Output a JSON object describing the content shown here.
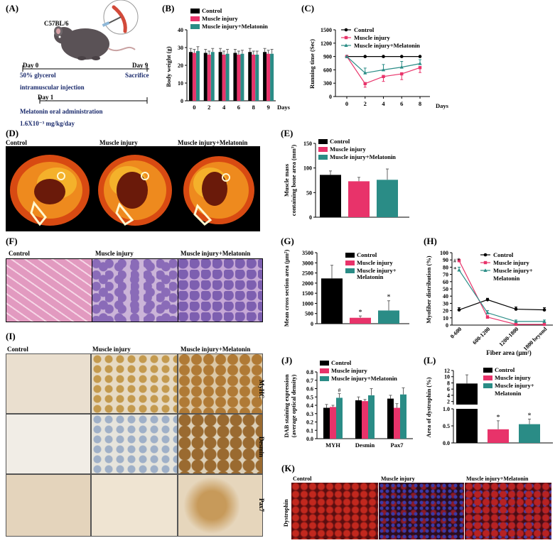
{
  "colors": {
    "control": "#000000",
    "injury": "#e8336a",
    "melatonin": "#2a8c86"
  },
  "panelA": {
    "label": "(A)",
    "mouse": "C57BL/6",
    "day0": "Day 0",
    "day9": "Day 9",
    "day1": "Day 1",
    "glycerol1": "50% glycerol",
    "glycerol2": "intramuscular injection",
    "sacrifice": "Sacrifice",
    "melatonin": "Melatonin oral administration",
    "dose": "1.6X10⁻³ mg/kg/day"
  },
  "legend": {
    "control": "Control",
    "injury": "Muscle injury",
    "melatonin": "Muscle injury+Melatonin",
    "melatonin_wrap1": "Muscle injury+",
    "melatonin_wrap2": "Melatonin"
  },
  "panelB": {
    "label": "(B)"
  },
  "panelC": {
    "label": "(C)"
  },
  "panelD": {
    "label": "(D)",
    "c1": "Control",
    "c2": "Muscle injury",
    "c3": "Muscle injury+Melatonin"
  },
  "panelE": {
    "label": "(E)"
  },
  "panelF": {
    "label": "(F)",
    "c1": "Control",
    "c2": "Muscle injury",
    "c3": "Muscle injury+Melatonin"
  },
  "panelG": {
    "label": "(G)"
  },
  "panelH": {
    "label": "(H)"
  },
  "panelI": {
    "label": "(I)",
    "c1": "Control",
    "c2": "Muscle injury",
    "c3": "Muscle injury+Melatonin",
    "r1": "MyHC",
    "r2": "Desmin",
    "r3": "Pax7"
  },
  "panelJ": {
    "label": "(J)"
  },
  "panelK": {
    "label": "(K)",
    "c1": "Control",
    "c2": "Muscle injury",
    "c3": "Muscle injury+Melatonin",
    "row": "Dystrophin"
  },
  "panelL": {
    "label": "(L)"
  },
  "chart_data": [
    {
      "panel": "B",
      "type": "bar",
      "categories": [
        "0",
        "2",
        "4",
        "6",
        "8",
        "9"
      ],
      "xlabel": "Days",
      "ylabel": "Body weight (g)",
      "ylim": [
        0,
        40
      ],
      "yticks": [
        0,
        10,
        20,
        30,
        40
      ],
      "series": [
        {
          "name": "Control",
          "values": [
            27.5,
            27,
            27.5,
            27,
            27.5,
            27.5
          ],
          "err": [
            2,
            2,
            2,
            2,
            2,
            2
          ]
        },
        {
          "name": "Muscle injury",
          "values": [
            27,
            26,
            26,
            26,
            26,
            26.5
          ],
          "err": [
            2,
            2,
            2,
            2,
            2,
            2
          ]
        },
        {
          "name": "Muscle injury+Melatonin",
          "values": [
            28,
            27.5,
            26.5,
            26.5,
            26,
            26.5
          ],
          "err": [
            2.5,
            2,
            2.5,
            2,
            2,
            2.5
          ]
        }
      ]
    },
    {
      "panel": "C",
      "type": "line",
      "x": [
        0,
        2,
        4,
        6,
        8
      ],
      "xlabel": "Days",
      "ylabel": "Running time (Sec)",
      "ylim": [
        0,
        1500
      ],
      "yticks": [
        0,
        300,
        600,
        900,
        1200,
        1500
      ],
      "series": [
        {
          "name": "Control",
          "values": [
            900,
            900,
            900,
            900,
            900
          ],
          "err": [
            0,
            0,
            0,
            0,
            0
          ]
        },
        {
          "name": "Muscle injury",
          "values": [
            900,
            290,
            450,
            510,
            650
          ],
          "err": [
            0,
            80,
            110,
            130,
            110
          ]
        },
        {
          "name": "Muscle injury+Melatonin",
          "values": [
            900,
            530,
            600,
            660,
            740
          ],
          "err": [
            0,
            110,
            120,
            130,
            90
          ]
        }
      ]
    },
    {
      "panel": "E",
      "type": "bar",
      "categories": [
        ""
      ],
      "ylabel": "Muscle mass containing bone area (mm³)",
      "ylim": [
        0,
        150
      ],
      "yticks": [
        0,
        50,
        100,
        150
      ],
      "series": [
        {
          "name": "Control",
          "values": [
            86
          ],
          "err": [
            8
          ]
        },
        {
          "name": "Muscle injury",
          "values": [
            73
          ],
          "err": [
            8
          ]
        },
        {
          "name": "Muscle injury+Melatonin",
          "values": [
            76
          ],
          "err": [
            22
          ]
        }
      ]
    },
    {
      "panel": "G",
      "type": "bar",
      "categories": [
        ""
      ],
      "ylabel": "Mean cross section area (μm²)",
      "ylim": [
        0,
        3500
      ],
      "yticks": [
        0,
        500,
        1000,
        1500,
        2000,
        2500,
        3000,
        3500
      ],
      "series": [
        {
          "name": "Control",
          "values": [
            2230
          ],
          "err": [
            650
          ]
        },
        {
          "name": "Muscle injury",
          "values": [
            290
          ],
          "err": [
            90
          ],
          "sig": "*"
        },
        {
          "name": "Muscle injury+Melatonin",
          "values": [
            650
          ],
          "err": [
            480
          ],
          "sig": "*"
        }
      ]
    },
    {
      "panel": "H",
      "type": "line",
      "categories": [
        "0-600",
        "600-1200",
        "1200-1800",
        "1800 beyond"
      ],
      "xlabel": "Fiber area (μm²)",
      "ylabel": "Myofiber distribution (%)",
      "ylim": [
        0,
        100
      ],
      "yticks": [
        0,
        10,
        20,
        30,
        40,
        50,
        60,
        70,
        80,
        90,
        100
      ],
      "series": [
        {
          "name": "Control",
          "values": [
            21,
            35,
            22,
            21
          ],
          "err": [
            3,
            2,
            3,
            3
          ]
        },
        {
          "name": "Muscle injury",
          "values": [
            89,
            11,
            1,
            1
          ],
          "err": [
            2,
            2,
            1,
            1
          ],
          "sig": [
            "#"
          ]
        },
        {
          "name": "Muscle injury+Melatonin",
          "values": [
            76,
            17,
            5,
            5
          ],
          "err": [
            4,
            3,
            2,
            2
          ],
          "sig": [
            "*"
          ]
        }
      ]
    },
    {
      "panel": "J",
      "type": "bar",
      "categories": [
        "MYH",
        "Desmin",
        "Pax7"
      ],
      "ylabel": "DAB staining expression (average optical density)",
      "ylim": [
        0,
        0.8
      ],
      "yticks": [
        0,
        0.1,
        0.2,
        0.3,
        0.4,
        0.5,
        0.6,
        0.7,
        0.8
      ],
      "series": [
        {
          "name": "Control",
          "values": [
            0.37,
            0.46,
            0.48
          ],
          "err": [
            0.04,
            0.04,
            0.04
          ]
        },
        {
          "name": "Muscle injury",
          "values": [
            0.38,
            0.45,
            0.37
          ],
          "err": [
            0.02,
            0.02,
            0.05
          ]
        },
        {
          "name": "Muscle injury+Melatonin",
          "values": [
            0.49,
            0.52,
            0.53
          ],
          "err": [
            0.05,
            0.08,
            0.08
          ],
          "sig": [
            "#",
            "",
            ""
          ]
        }
      ]
    },
    {
      "panel": "L",
      "type": "bar",
      "categories": [
        ""
      ],
      "ylabel": "Area of dystrophin (%)",
      "yticks_lower": [
        0.0,
        0.5,
        1.0
      ],
      "yticks_upper": [
        2,
        4,
        6,
        8,
        10,
        12
      ],
      "series": [
        {
          "name": "Control",
          "values": [
            7.8
          ],
          "err": [
            2.8
          ]
        },
        {
          "name": "Muscle injury",
          "values": [
            0.4
          ],
          "err": [
            0.25
          ],
          "sig": "*"
        },
        {
          "name": "Muscle injury+Melatonin",
          "values": [
            0.55
          ],
          "err": [
            0.15
          ],
          "sig": "*"
        }
      ]
    }
  ]
}
